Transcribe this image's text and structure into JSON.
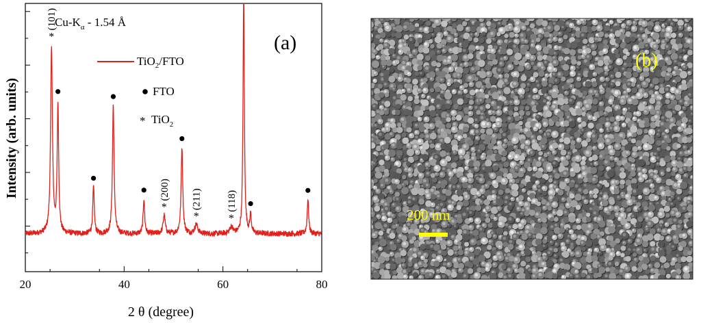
{
  "chart_data": [
    {
      "type": "line",
      "panel_label": "(a)",
      "xlabel": "2 θ (degree)",
      "ylabel": "Intensity (arb. units)",
      "xlim": [
        20,
        80
      ],
      "x_ticks": [
        20,
        40,
        60,
        80
      ],
      "y_tick_labels": false,
      "grid": false,
      "radiation_label": {
        "main": "Cu-K",
        "sub": "α",
        "rest": " - 1.54 Å"
      },
      "series": [
        {
          "name": "TiO2/FTO",
          "color": "#e0201a",
          "baseline": 0.08,
          "noise": 0.012,
          "peaks": [
            {
              "x": 25.3,
              "height": 0.8,
              "width": 0.22
            },
            {
              "x": 26.6,
              "height": 0.55,
              "width": 0.18
            },
            {
              "x": 33.8,
              "height": 0.2,
              "width": 0.18
            },
            {
              "x": 37.8,
              "height": 0.55,
              "width": 0.2
            },
            {
              "x": 44.0,
              "height": 0.15,
              "width": 0.18
            },
            {
              "x": 48.1,
              "height": 0.08,
              "width": 0.25
            },
            {
              "x": 51.7,
              "height": 0.37,
              "width": 0.2
            },
            {
              "x": 54.6,
              "height": 0.04,
              "width": 0.35
            },
            {
              "x": 61.7,
              "height": 0.03,
              "width": 0.35
            },
            {
              "x": 64.2,
              "height": 1.02,
              "width": 0.16
            },
            {
              "x": 65.6,
              "height": 0.08,
              "width": 0.18
            },
            {
              "x": 77.2,
              "height": 0.15,
              "width": 0.18
            }
          ]
        }
      ],
      "legend": {
        "line_label": {
          "main": "TiO",
          "sub": "2",
          "rest": "/FTO"
        },
        "fto_label": "FTO",
        "tio2_label": {
          "main": "TiO",
          "sub": "2"
        }
      },
      "fto_markers": [
        26.6,
        33.8,
        37.8,
        44.0,
        51.7,
        64.2,
        65.6,
        77.2
      ],
      "tio2_markers": [
        {
          "x": 25.3,
          "label": "(101)"
        },
        {
          "x": 48.1,
          "label": "(200)"
        },
        {
          "x": 54.6,
          "label": "(211)"
        },
        {
          "x": 61.7,
          "label": "(118)"
        }
      ]
    }
  ],
  "sem_panel": {
    "panel_label": "(b)",
    "scale_bar_label": "200 nm",
    "label_color": "#ffff00"
  }
}
